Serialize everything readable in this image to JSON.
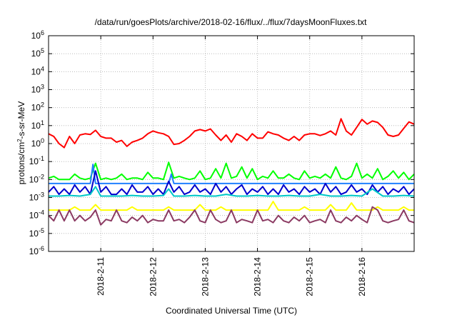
{
  "chart_data": {
    "type": "line",
    "title": "/data/run/goesPlots/archive/2018-02-16/flux/../flux/7daysMoonFluxes.txt",
    "xlabel": "Coordinated Universal Time (UTC)",
    "ylabel_parts": [
      "protons/cm",
      "2",
      "-s-sr-MeV"
    ],
    "yscale": "log",
    "ylim_exp": [
      -6,
      6
    ],
    "y_ticks": [
      {
        "base": "10",
        "exp": "-6"
      },
      {
        "base": "10",
        "exp": "-5"
      },
      {
        "base": "10",
        "exp": "-4"
      },
      {
        "base": "10",
        "exp": "-3"
      },
      {
        "base": "10",
        "exp": "-2"
      },
      {
        "base": "10",
        "exp": "-1"
      },
      {
        "base": "10",
        "exp": "0"
      },
      {
        "base": "10",
        "exp": "1"
      },
      {
        "base": "10",
        "exp": "2"
      },
      {
        "base": "10",
        "exp": "3"
      },
      {
        "base": "10",
        "exp": "4"
      },
      {
        "base": "10",
        "exp": "5"
      },
      {
        "base": "10",
        "exp": "6"
      }
    ],
    "x_ticks": [
      "2018-2-11",
      "2018-2-12",
      "2018-2-13",
      "2018-2-14",
      "2018-2-15",
      "2018-2-16"
    ],
    "xlim": [
      "2018-02-10",
      "2018-02-17"
    ],
    "grid": true,
    "series": [
      {
        "color": "#ff0000",
        "t": [
          0,
          0.1,
          0.2,
          0.3,
          0.4,
          0.5,
          0.6,
          0.7,
          0.8,
          0.9,
          1.0,
          1.1,
          1.2,
          1.3,
          1.4,
          1.5,
          1.6,
          1.7,
          1.8,
          1.9,
          2.0,
          2.1,
          2.2,
          2.3,
          2.4,
          2.5,
          2.6,
          2.7,
          2.8,
          2.9,
          3.0,
          3.1,
          3.2,
          3.3,
          3.4,
          3.5,
          3.6,
          3.7,
          3.8,
          3.9,
          4.0,
          4.1,
          4.2,
          4.3,
          4.4,
          4.5,
          4.6,
          4.7,
          4.8,
          4.9,
          5.0,
          5.1,
          5.2,
          5.3,
          5.4,
          5.5,
          5.6,
          5.7,
          5.8,
          5.9,
          6.0,
          6.1,
          6.2,
          6.3,
          6.4,
          6.5,
          6.6,
          6.7,
          6.8,
          6.9,
          7.0
        ],
        "values": [
          3.5,
          2.5,
          1.0,
          0.6,
          2.5,
          1.0,
          3.0,
          3.5,
          3.2,
          5.5,
          2.5,
          2.0,
          2.0,
          1.2,
          1.5,
          0.7,
          1.2,
          1.5,
          2.0,
          3.5,
          5.0,
          4.0,
          3.5,
          2.5,
          0.9,
          1.0,
          1.5,
          2.5,
          5.0,
          6.0,
          5.0,
          6.5,
          3.0,
          1.5,
          3.0,
          1.2,
          3.5,
          2.5,
          1.5,
          3.5,
          2.0,
          2.0,
          4.5,
          3.5,
          3.0,
          2.0,
          1.5,
          2.5,
          1.5,
          3.0,
          3.5,
          3.5,
          2.8,
          3.5,
          5.0,
          3.0,
          24.0,
          5.0,
          3.0,
          8.0,
          22.0,
          12.0,
          18.0,
          15.0,
          8.0,
          3.0,
          2.5,
          3.0,
          7.0,
          16.0,
          12.0
        ]
      },
      {
        "color": "#00ff00",
        "t": [
          0,
          0.1,
          0.2,
          0.3,
          0.4,
          0.5,
          0.6,
          0.7,
          0.8,
          0.9,
          1.0,
          1.1,
          1.2,
          1.3,
          1.4,
          1.5,
          1.6,
          1.7,
          1.8,
          1.9,
          2.0,
          2.1,
          2.2,
          2.3,
          2.4,
          2.5,
          2.6,
          2.7,
          2.8,
          2.9,
          3.0,
          3.1,
          3.2,
          3.3,
          3.4,
          3.5,
          3.6,
          3.7,
          3.8,
          3.9,
          4.0,
          4.1,
          4.2,
          4.3,
          4.4,
          4.5,
          4.6,
          4.7,
          4.8,
          4.9,
          5.0,
          5.1,
          5.2,
          5.3,
          5.4,
          5.5,
          5.6,
          5.7,
          5.8,
          5.9,
          6.0,
          6.1,
          6.2,
          6.3,
          6.4,
          6.5,
          6.6,
          6.7,
          6.8,
          6.9,
          7.0
        ],
        "values": [
          0.012,
          0.015,
          0.01,
          0.01,
          0.01,
          0.02,
          0.012,
          0.01,
          0.012,
          0.08,
          0.01,
          0.012,
          0.01,
          0.012,
          0.02,
          0.01,
          0.012,
          0.012,
          0.01,
          0.025,
          0.012,
          0.012,
          0.01,
          0.09,
          0.012,
          0.015,
          0.012,
          0.01,
          0.012,
          0.03,
          0.01,
          0.012,
          0.04,
          0.012,
          0.08,
          0.012,
          0.015,
          0.05,
          0.012,
          0.04,
          0.01,
          0.015,
          0.012,
          0.03,
          0.012,
          0.012,
          0.02,
          0.012,
          0.01,
          0.03,
          0.012,
          0.015,
          0.012,
          0.02,
          0.012,
          0.05,
          0.012,
          0.01,
          0.015,
          0.08,
          0.012,
          0.02,
          0.012,
          0.04,
          0.01,
          0.015,
          0.03,
          0.012,
          0.025,
          0.01,
          0.02
        ]
      },
      {
        "color": "#2080ff",
        "t": [
          0,
          0.5,
          0.8,
          0.85,
          0.9,
          1.0,
          1.5,
          2.0,
          2.3,
          2.35,
          2.4,
          2.5,
          3.0,
          3.5,
          4.0,
          4.5,
          5.0,
          5.5,
          6.0,
          6.5,
          7.0
        ],
        "values": [
          0.006,
          0.006,
          0.006,
          0.07,
          0.006,
          0.006,
          0.006,
          0.006,
          0.006,
          0.02,
          0.006,
          0.006,
          0.006,
          0.006,
          0.006,
          0.006,
          0.006,
          0.006,
          0.006,
          0.006,
          0.006
        ]
      },
      {
        "color": "#0000cc",
        "t": [
          0,
          0.1,
          0.2,
          0.3,
          0.4,
          0.5,
          0.6,
          0.7,
          0.8,
          0.9,
          1.0,
          1.1,
          1.2,
          1.3,
          1.4,
          1.5,
          1.6,
          1.7,
          1.8,
          1.9,
          2.0,
          2.1,
          2.2,
          2.3,
          2.4,
          2.5,
          2.6,
          2.7,
          2.8,
          2.9,
          3.0,
          3.1,
          3.2,
          3.3,
          3.4,
          3.5,
          3.6,
          3.7,
          3.8,
          3.9,
          4.0,
          4.1,
          4.2,
          4.3,
          4.4,
          4.5,
          4.6,
          4.7,
          4.8,
          4.9,
          5.0,
          5.1,
          5.2,
          5.3,
          5.4,
          5.5,
          5.6,
          5.7,
          5.8,
          5.9,
          6.0,
          6.1,
          6.2,
          6.3,
          6.4,
          6.5,
          6.6,
          6.7,
          6.8,
          6.9,
          7.0
        ],
        "values": [
          0.002,
          0.004,
          0.0015,
          0.003,
          0.0015,
          0.005,
          0.002,
          0.004,
          0.0015,
          0.03,
          0.002,
          0.004,
          0.0015,
          0.0015,
          0.003,
          0.0015,
          0.005,
          0.002,
          0.002,
          0.004,
          0.0015,
          0.003,
          0.0015,
          0.008,
          0.002,
          0.004,
          0.0015,
          0.002,
          0.005,
          0.002,
          0.003,
          0.0015,
          0.006,
          0.002,
          0.004,
          0.0015,
          0.003,
          0.005,
          0.0015,
          0.003,
          0.002,
          0.004,
          0.0015,
          0.003,
          0.0015,
          0.005,
          0.002,
          0.003,
          0.0015,
          0.004,
          0.002,
          0.003,
          0.0015,
          0.006,
          0.002,
          0.004,
          0.0015,
          0.002,
          0.005,
          0.002,
          0.003,
          0.0015,
          0.005,
          0.002,
          0.004,
          0.0015,
          0.003,
          0.002,
          0.004,
          0.0015,
          0.003
        ]
      },
      {
        "color": "#00c8c8",
        "t": [
          0,
          0.2,
          0.4,
          0.6,
          0.8,
          0.9,
          1.0,
          1.2,
          1.4,
          1.6,
          1.8,
          2.0,
          2.2,
          2.3,
          2.4,
          2.6,
          2.8,
          3.0,
          3.2,
          3.4,
          3.6,
          3.8,
          4.0,
          4.2,
          4.4,
          4.6,
          4.8,
          5.0,
          5.2,
          5.4,
          5.6,
          5.8,
          6.0,
          6.2,
          6.4,
          6.6,
          6.8,
          7.0
        ],
        "values": [
          0.0012,
          0.0012,
          0.0013,
          0.0012,
          0.0015,
          0.004,
          0.0012,
          0.0012,
          0.0012,
          0.0013,
          0.0012,
          0.0012,
          0.0013,
          0.003,
          0.0012,
          0.0012,
          0.0013,
          0.0012,
          0.0012,
          0.0015,
          0.0012,
          0.0012,
          0.0013,
          0.0012,
          0.0012,
          0.0013,
          0.0012,
          0.0012,
          0.0015,
          0.0012,
          0.0012,
          0.0013,
          0.0012,
          0.003,
          0.0012,
          0.0012,
          0.0013,
          0.0012
        ]
      },
      {
        "color": "#ffff00",
        "t": [
          0,
          0.1,
          0.2,
          0.3,
          0.4,
          0.5,
          0.6,
          0.7,
          0.8,
          0.9,
          1.0,
          1.1,
          1.2,
          1.3,
          1.4,
          1.5,
          1.6,
          1.7,
          1.8,
          1.9,
          2.0,
          2.1,
          2.2,
          2.3,
          2.4,
          2.5,
          2.6,
          2.7,
          2.8,
          2.9,
          3.0,
          3.1,
          3.2,
          3.3,
          3.4,
          3.5,
          3.6,
          3.7,
          3.8,
          3.9,
          4.0,
          4.1,
          4.2,
          4.3,
          4.4,
          4.5,
          4.6,
          4.7,
          4.8,
          4.9,
          5.0,
          5.1,
          5.2,
          5.3,
          5.4,
          5.5,
          5.6,
          5.7,
          5.8,
          5.9,
          6.0,
          6.1,
          6.2,
          6.3,
          6.4,
          6.5,
          6.6,
          6.7,
          6.8,
          6.9,
          7.0
        ],
        "values": [
          0.0002,
          0.0002,
          0.0002,
          0.0002,
          0.0002,
          0.0003,
          0.0002,
          0.0002,
          0.0002,
          0.0004,
          0.0002,
          0.0002,
          0.0002,
          0.0002,
          0.0002,
          0.0002,
          0.0003,
          0.0002,
          0.0002,
          0.0002,
          0.0002,
          0.0002,
          0.0002,
          0.0003,
          0.0002,
          0.0002,
          0.0002,
          0.0002,
          0.0002,
          0.0004,
          0.0002,
          0.0002,
          0.0002,
          0.0003,
          0.0002,
          0.0002,
          0.0002,
          0.0002,
          0.0002,
          0.0002,
          0.0002,
          0.0002,
          0.0002,
          0.0006,
          0.0002,
          0.0002,
          0.0002,
          0.0002,
          0.0002,
          0.0003,
          0.0002,
          0.0002,
          0.0002,
          0.0002,
          0.0004,
          0.0002,
          0.0002,
          0.0002,
          0.0005,
          0.0002,
          0.0002,
          0.0002,
          0.0002,
          0.0003,
          0.0002,
          0.0002,
          0.0002,
          0.0002,
          0.0003,
          0.0002,
          0.0002
        ]
      },
      {
        "color": "#8b3a62",
        "t": [
          0,
          0.1,
          0.2,
          0.3,
          0.4,
          0.5,
          0.6,
          0.7,
          0.8,
          0.9,
          1.0,
          1.1,
          1.2,
          1.3,
          1.4,
          1.5,
          1.6,
          1.7,
          1.8,
          1.9,
          2.0,
          2.1,
          2.2,
          2.3,
          2.4,
          2.5,
          2.6,
          2.7,
          2.8,
          2.9,
          3.0,
          3.1,
          3.2,
          3.3,
          3.4,
          3.5,
          3.6,
          3.7,
          3.8,
          3.9,
          4.0,
          4.1,
          4.2,
          4.3,
          4.4,
          4.5,
          4.6,
          4.7,
          4.8,
          4.9,
          5.0,
          5.1,
          5.2,
          5.3,
          5.4,
          5.5,
          5.6,
          5.7,
          5.8,
          5.9,
          6.0,
          6.1,
          6.2,
          6.3,
          6.4,
          6.5,
          6.6,
          6.7,
          6.8,
          6.9,
          7.0
        ],
        "values": [
          0.0001,
          5e-05,
          0.0002,
          5e-05,
          0.0002,
          5e-05,
          0.0001,
          5e-05,
          8e-05,
          0.0002,
          3e-05,
          6e-05,
          5e-05,
          0.0002,
          5e-05,
          4e-05,
          8e-05,
          5e-05,
          0.0001,
          4e-05,
          6e-05,
          5e-05,
          5e-05,
          0.0002,
          5e-05,
          6e-05,
          4e-05,
          8e-05,
          0.0002,
          5e-05,
          4e-05,
          0.0002,
          6e-05,
          4e-05,
          5e-05,
          0.0002,
          4e-05,
          6e-05,
          5e-05,
          4e-05,
          0.0002,
          5e-05,
          6e-05,
          4e-05,
          0.0001,
          5e-05,
          4e-05,
          8e-05,
          5e-05,
          0.0001,
          4e-05,
          5e-05,
          6e-05,
          4e-05,
          0.0002,
          5e-05,
          4e-05,
          8e-05,
          5e-05,
          0.0001,
          6e-05,
          4e-05,
          0.0003,
          0.0002,
          5e-05,
          4e-05,
          5e-05,
          6e-05,
          0.0002,
          5e-05,
          4e-05
        ]
      }
    ]
  }
}
